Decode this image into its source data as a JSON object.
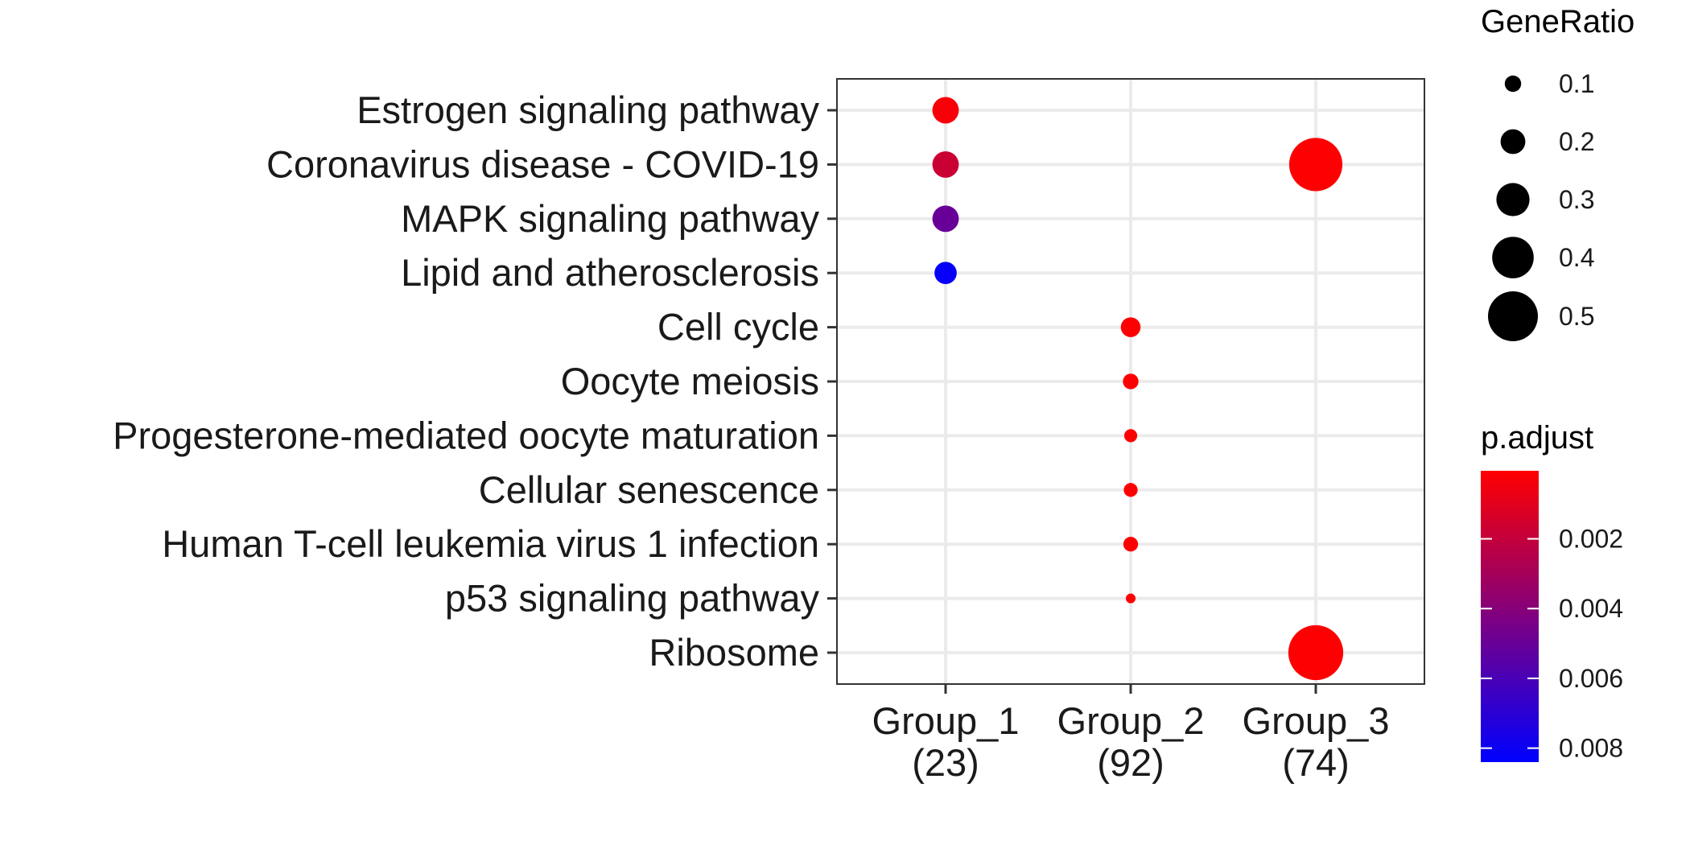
{
  "chart_data": {
    "type": "scatter",
    "subtype": "dotplot",
    "x_categories": [
      {
        "name": "Group_1",
        "count": "(23)"
      },
      {
        "name": "Group_2",
        "count": "(92)"
      },
      {
        "name": "Group_3",
        "count": "(74)"
      }
    ],
    "y_categories": [
      "Estrogen signaling pathway",
      "Coronavirus disease - COVID-19",
      "MAPK signaling pathway",
      "Lipid and atherosclerosis",
      "Cell cycle",
      "Oocyte meiosis",
      "Progesterone-mediated oocyte maturation",
      "Cellular senescence",
      "Human T-cell leukemia virus 1 infection",
      "p53 signaling pathway",
      "Ribosome"
    ],
    "points": [
      {
        "x": "Group_1",
        "y": "Estrogen signaling pathway",
        "gene_ratio": 0.22,
        "p_adjust": 0.0003
      },
      {
        "x": "Group_1",
        "y": "Coronavirus disease - COVID-19",
        "gene_ratio": 0.22,
        "p_adjust": 0.0018
      },
      {
        "x": "Group_1",
        "y": "MAPK signaling pathway",
        "gene_ratio": 0.22,
        "p_adjust": 0.005
      },
      {
        "x": "Group_1",
        "y": "Lipid and atherosclerosis",
        "gene_ratio": 0.17,
        "p_adjust": 0.0082
      },
      {
        "x": "Group_3",
        "y": "Coronavirus disease - COVID-19",
        "gene_ratio": 0.54,
        "p_adjust": 0.0001
      },
      {
        "x": "Group_2",
        "y": "Cell cycle",
        "gene_ratio": 0.14,
        "p_adjust": 0.0001
      },
      {
        "x": "Group_2",
        "y": "Oocyte meiosis",
        "gene_ratio": 0.09,
        "p_adjust": 0.0001
      },
      {
        "x": "Group_2",
        "y": "Progesterone-mediated oocyte maturation",
        "gene_ratio": 0.06,
        "p_adjust": 0.0001
      },
      {
        "x": "Group_2",
        "y": "Cellular senescence",
        "gene_ratio": 0.07,
        "p_adjust": 0.0001
      },
      {
        "x": "Group_2",
        "y": "Human T-cell leukemia virus 1 infection",
        "gene_ratio": 0.08,
        "p_adjust": 0.0001
      },
      {
        "x": "Group_2",
        "y": "p53 signaling pathway",
        "gene_ratio": 0.02,
        "p_adjust": 0.0001
      },
      {
        "x": "Group_3",
        "y": "Ribosome",
        "gene_ratio": 0.56,
        "p_adjust": 0.0001
      }
    ],
    "size_legend": {
      "title": "GeneRatio",
      "breaks": [
        {
          "value": 0.1,
          "label": "0.1"
        },
        {
          "value": 0.2,
          "label": "0.2"
        },
        {
          "value": 0.3,
          "label": "0.3"
        },
        {
          "value": 0.4,
          "label": "0.4"
        },
        {
          "value": 0.5,
          "label": "0.5"
        }
      ]
    },
    "color_legend": {
      "title": "p.adjust",
      "low_color": "#ff0000",
      "high_color": "#0000ff",
      "range": [
        5e-05,
        0.0084
      ],
      "breaks": [
        {
          "value": 0.002,
          "label": "0.002"
        },
        {
          "value": 0.004,
          "label": "0.004"
        },
        {
          "value": 0.006,
          "label": "0.006"
        },
        {
          "value": 0.008,
          "label": "0.008"
        }
      ]
    },
    "grid": true,
    "legend_position": "right"
  }
}
